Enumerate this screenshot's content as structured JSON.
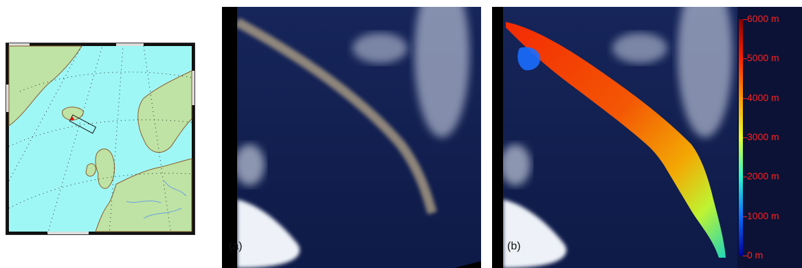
{
  "panels": {
    "a": {
      "label": "(a)"
    },
    "b": {
      "label": "(b)"
    }
  },
  "colorbar": {
    "unit": "m",
    "ticks": [
      {
        "value": 6000,
        "label": "6000 m"
      },
      {
        "value": 5000,
        "label": "5000 m"
      },
      {
        "value": 4000,
        "label": "4000 m"
      },
      {
        "value": 3000,
        "label": "3000 m"
      },
      {
        "value": 2000,
        "label": "2000 m"
      },
      {
        "value": 1000,
        "label": "1000 m"
      },
      {
        "value": 0,
        "label": "0 m"
      }
    ],
    "colors": [
      "#8b0000",
      "#ff2000",
      "#ff9a00",
      "#e8ff2a",
      "#2af7d0",
      "#0a6bff",
      "#0000a0"
    ]
  },
  "map": {
    "ocean_color": "#9ff7f5",
    "land_color": "#bfe3a4",
    "marker_color": "#e01010"
  }
}
